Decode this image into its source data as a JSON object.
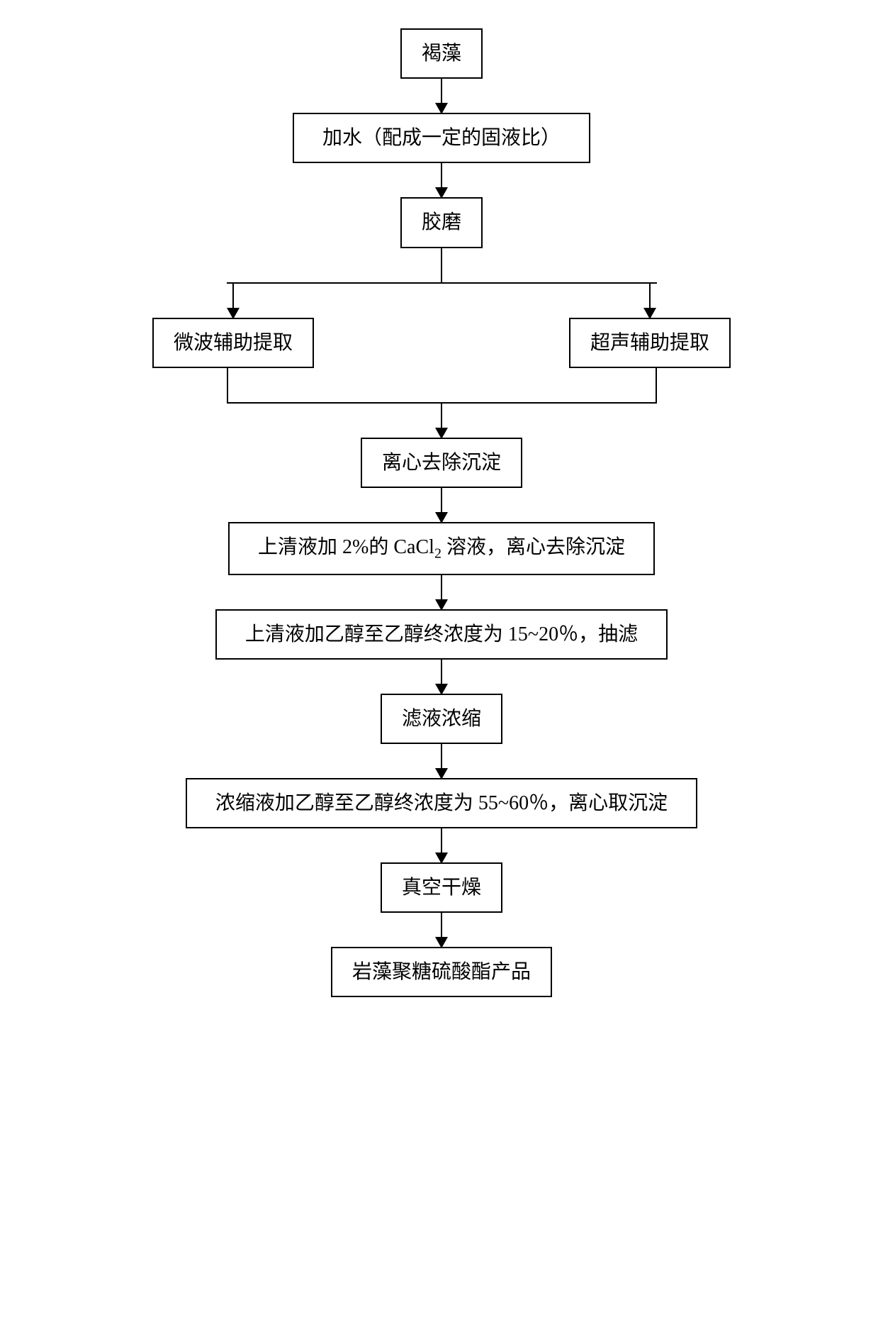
{
  "flowchart": {
    "type": "flowchart",
    "background_color": "#ffffff",
    "border_color": "#000000",
    "border_width": 2,
    "font_family": "SimSun",
    "font_size": 28,
    "nodes": {
      "n1": "褐藻",
      "n2": "加水（配成一定的固液比）",
      "n3": "胶磨",
      "n4a": "微波辅助提取",
      "n4b": "超声辅助提取",
      "n5": "离心去除沉淀",
      "n6_prefix": "上清液加 2%的 CaCl",
      "n6_sub": "2",
      "n6_suffix": " 溶液，离心去除沉淀",
      "n7": "上清液加乙醇至乙醇终浓度为 15~20％，抽滤",
      "n8": "滤液浓缩",
      "n9": "浓缩液加乙醇至乙醇终浓度为 55~60％，离心取沉淀",
      "n10": "真空干燥",
      "n11": "岩藻聚糖硫酸酯产品"
    },
    "edges": [
      {
        "from": "n1",
        "to": "n2"
      },
      {
        "from": "n2",
        "to": "n3"
      },
      {
        "from": "n3",
        "to": "n4a"
      },
      {
        "from": "n3",
        "to": "n4b"
      },
      {
        "from": "n4a",
        "to": "n5"
      },
      {
        "from": "n4b",
        "to": "n5"
      },
      {
        "from": "n5",
        "to": "n6"
      },
      {
        "from": "n6",
        "to": "n7"
      },
      {
        "from": "n7",
        "to": "n8"
      },
      {
        "from": "n8",
        "to": "n9"
      },
      {
        "from": "n9",
        "to": "n10"
      },
      {
        "from": "n10",
        "to": "n11"
      }
    ],
    "arrow_color": "#000000",
    "arrow_head_size": 16
  }
}
